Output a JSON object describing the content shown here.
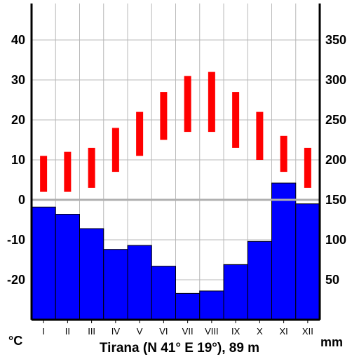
{
  "chart_data": {
    "type": "bar",
    "title": "Tirana (N 41° E 19°), 89 m",
    "categories": [
      "I",
      "II",
      "III",
      "IV",
      "V",
      "VI",
      "VII",
      "VIII",
      "IX",
      "X",
      "XI",
      "XII"
    ],
    "temperature": {
      "unit": "°C",
      "ylim": [
        -30,
        50
      ],
      "ticks": [
        40,
        30,
        20,
        10,
        0,
        -10,
        -20
      ],
      "min": [
        2,
        2,
        3,
        7,
        11,
        15,
        17,
        17,
        13,
        10,
        7,
        3
      ],
      "max": [
        11,
        12,
        13,
        18,
        22,
        27,
        31,
        32,
        27,
        22,
        16,
        13
      ],
      "color": "#ff0000"
    },
    "precipitation": {
      "unit": "mm",
      "ylim": [
        0,
        400
      ],
      "ticks": [
        350,
        300,
        250,
        200,
        150,
        100,
        50
      ],
      "values": [
        141,
        132,
        114,
        88,
        93,
        67,
        33,
        36,
        69,
        98,
        171,
        145
      ],
      "color": "#0000ff"
    },
    "grid": true,
    "zero_line_color": "#b0b0b0"
  }
}
